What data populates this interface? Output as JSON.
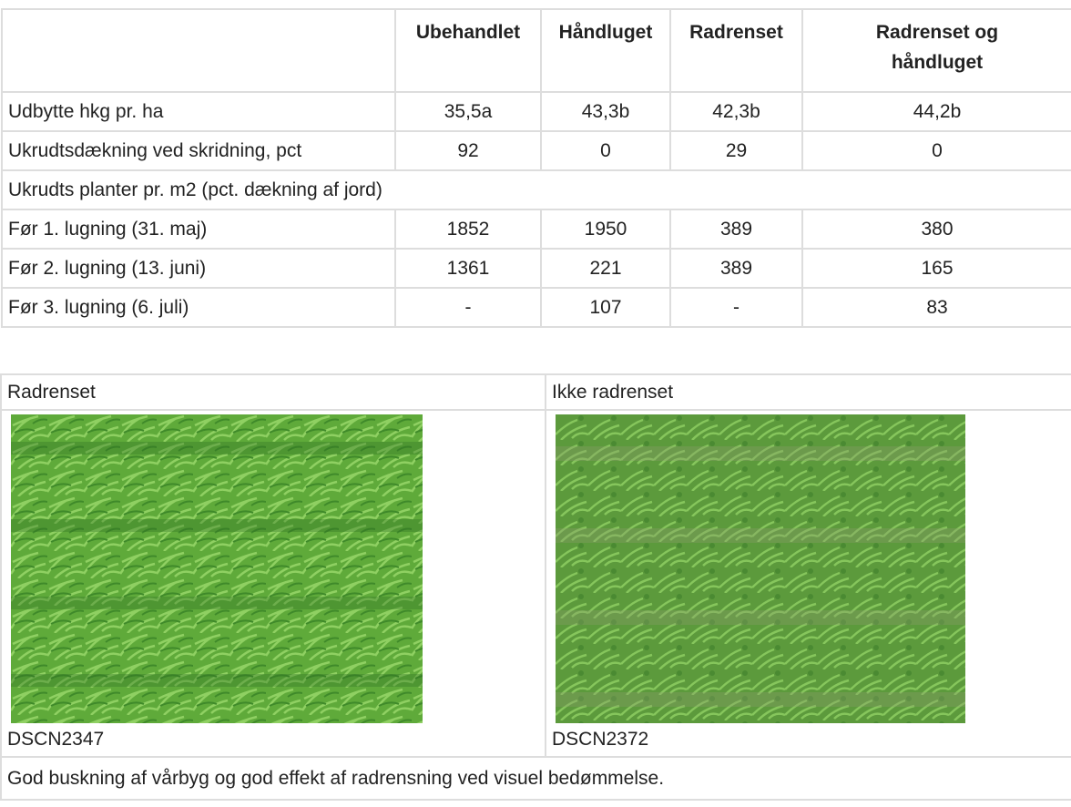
{
  "table": {
    "columns": [
      "Ubehandlet",
      "Håndluget",
      "Radrenset",
      "Radrenset og håndluget"
    ],
    "rows": [
      [
        "Udbytte hkg pr. ha",
        "35,5a",
        "43,3b",
        "42,3b",
        "44,2b"
      ],
      [
        "Ukrudtsdækning ved skridning, pct",
        "92",
        "0",
        "29",
        "0"
      ]
    ],
    "section": "Ukrudts planter pr. m2 (pct. dækning af jord)",
    "section_rows": [
      [
        "Før 1. lugning (31. maj)",
        "1852",
        "1950",
        "389",
        "380"
      ],
      [
        "Før 2. lugning (13. juni)",
        "1361",
        "221",
        "389",
        "165"
      ],
      [
        "Før 3. lugning (6. juli)",
        "-",
        "107",
        "-",
        "83"
      ]
    ]
  },
  "photos": [
    {
      "label": "Radrenset",
      "caption": "DSCN2347"
    },
    {
      "label": "Ikke radrenset",
      "caption": "DSCN2372"
    }
  ],
  "note": "God buskning af vårbyg og god effekt af radrensning ved visuel bedømmelse."
}
